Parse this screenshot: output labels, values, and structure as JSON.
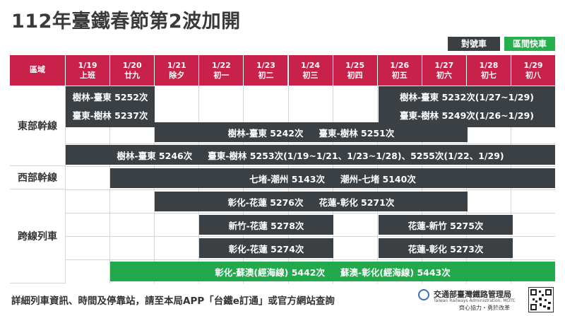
{
  "title": "112年臺鐵春節第2波加開",
  "legend": {
    "reserved": "對號車",
    "local": "區間快車"
  },
  "header": {
    "region": "區域",
    "days": [
      {
        "date": "1/19",
        "day": "上班"
      },
      {
        "date": "1/20",
        "day": "廿九"
      },
      {
        "date": "1/21",
        "day": "除夕"
      },
      {
        "date": "1/22",
        "day": "初一"
      },
      {
        "date": "1/23",
        "day": "初二"
      },
      {
        "date": "1/24",
        "day": "初三"
      },
      {
        "date": "1/25",
        "day": "初四"
      },
      {
        "date": "1/26",
        "day": "初五"
      },
      {
        "date": "1/27",
        "day": "初六"
      },
      {
        "date": "1/28",
        "day": "初七"
      },
      {
        "date": "1/29",
        "day": "初八"
      }
    ]
  },
  "regions": {
    "east": "東部幹線",
    "west": "西部幹線",
    "cross": "跨線列車"
  },
  "bars": {
    "e1a1": "樹林-臺東  5252次",
    "e1a2": "臺東-樹林  5237次",
    "e1b1": "樹林-臺東  5232次(1/27~1/29)",
    "e1b2": "臺東-樹林  5249次(1/26~1/29)",
    "e2a": "樹林-臺東  5242次",
    "e2b": "臺東-樹林  5251次",
    "e3a": "樹林-臺東  5246次",
    "e3b": "臺東-樹林  5253次(1/19~1/21、1/23~1/28)、5255次(1/22、1/29)",
    "w1a": "七堵-潮州  5143次",
    "w1b": "潮州-七堵 5140次",
    "c1a": "彰化-花蓮  5276次",
    "c1b": "花蓮-彰化 5271次",
    "c2a": "新竹-花蓮  5278次",
    "c2b": "花蓮-新竹  5275次",
    "c3a": "彰化-花蓮  5274次",
    "c3b": "花蓮-彰化  5273次",
    "c4a": "彰化-蘇澳(經海線)  5442次",
    "c4b": "蘇澳-彰化(經海線)  5443次"
  },
  "footer": {
    "text": "詳細列車資訊、時間及停靠站，請至本局APP「台鐵e訂通」或官方網站查詢",
    "org": "交通部臺灣鐵路管理局",
    "org_en": "Taiwan Railways Administration, MOTC",
    "slogan": "齊心協力・勇於改革"
  },
  "colors": {
    "header": "#c8224a",
    "reserved": "#3b4045",
    "local": "#22a94b"
  }
}
